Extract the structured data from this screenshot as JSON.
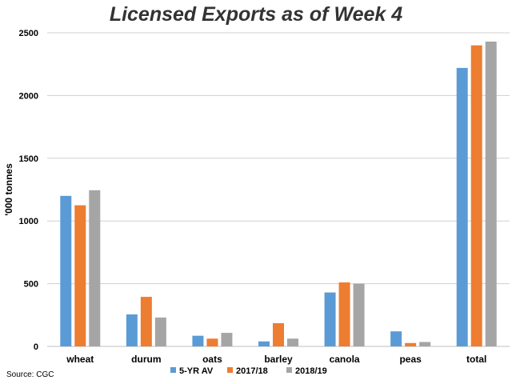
{
  "chart_data": {
    "type": "bar",
    "title": "Licensed Exports as of Week  4",
    "ylabel": "'000 tonnes",
    "xlabel": "",
    "ylim": [
      0,
      2500
    ],
    "yticks": [
      0,
      500,
      1000,
      1500,
      2000,
      2500
    ],
    "grid": true,
    "legend_position": "bottom",
    "categories": [
      "wheat",
      "durum",
      "oats",
      "barley",
      "canola",
      "peas",
      "total"
    ],
    "series": [
      {
        "name": "5-YR AV",
        "color": "#5b9bd5",
        "values": [
          1200,
          255,
          85,
          40,
          430,
          120,
          2220
        ]
      },
      {
        "name": "2017/18",
        "color": "#ed7d31",
        "values": [
          1125,
          395,
          62,
          185,
          510,
          27,
          2400
        ]
      },
      {
        "name": "2018/19",
        "color": "#a5a5a5",
        "values": [
          1245,
          230,
          108,
          62,
          500,
          35,
          2430
        ]
      }
    ],
    "source": "Source: CGC"
  }
}
